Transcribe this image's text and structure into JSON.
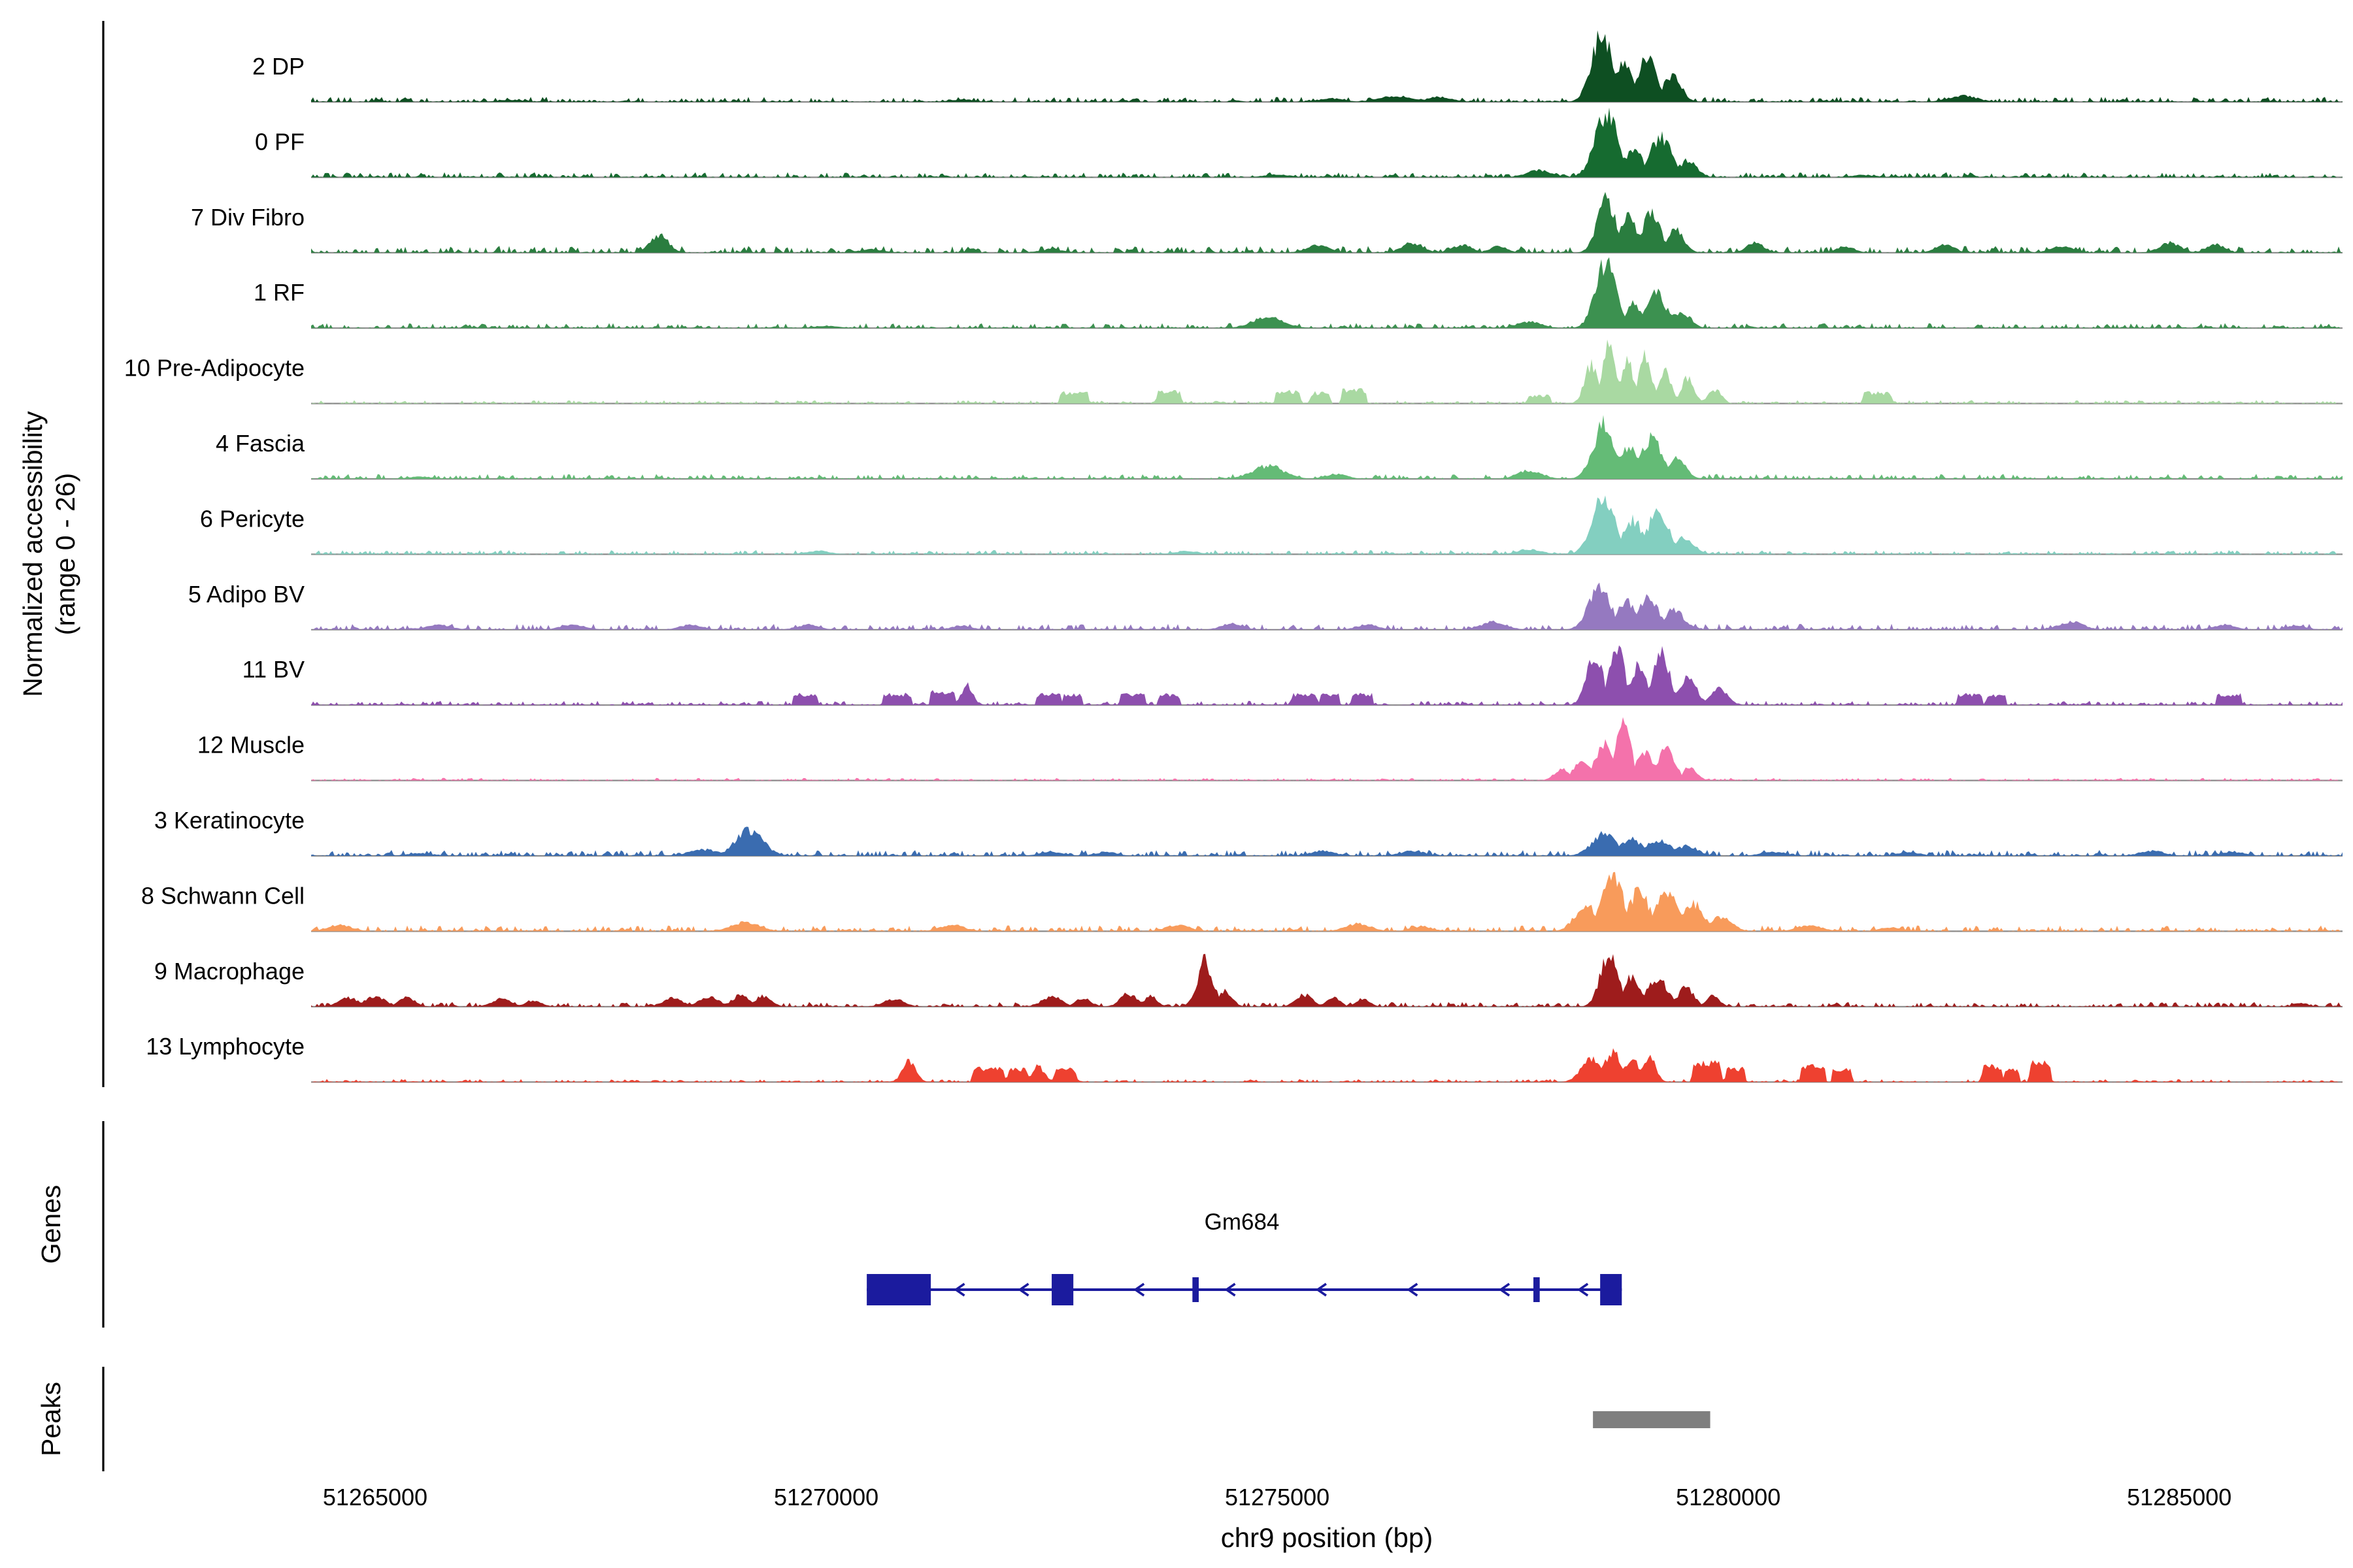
{
  "figure": {
    "y_axis_label_line1": "Normalized accessibility",
    "y_axis_label_line2": "(range 0 - 26)",
    "genes_label": "Genes",
    "peaks_label": "Peaks"
  },
  "chart_data": {
    "type": "area",
    "title": "",
    "xlabel": "chr9 position (bp)",
    "ylabel": "Normalized accessibility (range 0 - 26)",
    "x_domain": [
      51264290,
      51286810
    ],
    "x_ticks": [
      51265000,
      51270000,
      51275000,
      51280000,
      51285000
    ],
    "y_range_per_track": [
      0,
      26
    ],
    "baseline_color": "#8a8a8a",
    "peak_encoding": "peaks entries are [bp_center, height_in_accessibility_units_0to26, width_bp, optional 'b' for block/flat-top shape]",
    "tracks": [
      {
        "label": "2 DP",
        "color": "#0e4f22",
        "noise": 0.6,
        "peaks": [
          [
            51278600,
            24,
            250
          ],
          [
            51278850,
            14,
            220
          ],
          [
            51279100,
            15,
            250
          ],
          [
            51279380,
            9,
            220
          ],
          [
            51276300,
            2.2,
            400
          ],
          [
            51276800,
            1.8,
            300
          ],
          [
            51275600,
            1.2,
            300
          ],
          [
            51282600,
            2.2,
            350
          ],
          [
            51266500,
            0.8,
            300
          ],
          [
            51271500,
            0.8,
            300
          ]
        ]
      },
      {
        "label": "0 PF",
        "color": "#166b30",
        "noise": 0.6,
        "peaks": [
          [
            51278650,
            22.5,
            280
          ],
          [
            51278950,
            10,
            220
          ],
          [
            51279250,
            14,
            260
          ],
          [
            51279550,
            6,
            220
          ],
          [
            51277900,
            2.5,
            300
          ],
          [
            51275000,
            1,
            300
          ],
          [
            51281500,
            0.8,
            300
          ]
        ]
      },
      {
        "label": "7 Div Fibro",
        "color": "#2a7d3f",
        "noise": 0.8,
        "peaks": [
          [
            51278650,
            19,
            220
          ],
          [
            51278900,
            13,
            200
          ],
          [
            51279150,
            14,
            220
          ],
          [
            51279420,
            8,
            200
          ],
          [
            51268150,
            6.5,
            220
          ],
          [
            51275450,
            2.8,
            280
          ],
          [
            51276500,
            3.5,
            260
          ],
          [
            51277050,
            2.8,
            240
          ],
          [
            51277450,
            2.2,
            220
          ],
          [
            51280300,
            3.5,
            220
          ],
          [
            51281300,
            2.2,
            220
          ],
          [
            51282400,
            2.8,
            240
          ],
          [
            51283700,
            2.2,
            280
          ],
          [
            51284900,
            3.5,
            260
          ],
          [
            51285400,
            3,
            220
          ],
          [
            51270500,
            1.2,
            300
          ],
          [
            51272500,
            1.2,
            300
          ]
        ]
      },
      {
        "label": "1 RF",
        "color": "#3c9150",
        "noise": 0.6,
        "peaks": [
          [
            51278650,
            23,
            260
          ],
          [
            51278950,
            9,
            200
          ],
          [
            51279200,
            12,
            260
          ],
          [
            51279480,
            6,
            220
          ],
          [
            51274900,
            4,
            380
          ],
          [
            51277800,
            2.2,
            300
          ],
          [
            51270000,
            0.8,
            300
          ]
        ]
      },
      {
        "label": "10 Pre-Adipocyte",
        "color": "#a9d9a2",
        "noise": 0.4,
        "peaks": [
          [
            51278480,
            14,
            160
          ],
          [
            51278680,
            21,
            160
          ],
          [
            51278880,
            15,
            160
          ],
          [
            51279080,
            17,
            160
          ],
          [
            51279300,
            11,
            160
          ],
          [
            51279550,
            9,
            160
          ],
          [
            51279850,
            5,
            160
          ],
          [
            51272750,
            3.7,
            300,
            "b"
          ],
          [
            51273800,
            4.2,
            250,
            "b"
          ],
          [
            51275120,
            4.2,
            260,
            "b"
          ],
          [
            51275480,
            3.7,
            200,
            "b"
          ],
          [
            51275850,
            4.6,
            260,
            "b"
          ],
          [
            51277900,
            2.8,
            240,
            "b"
          ],
          [
            51281650,
            3.7,
            300,
            "b"
          ]
        ]
      },
      {
        "label": "4 Fascia",
        "color": "#64bb76",
        "noise": 0.6,
        "peaks": [
          [
            51278620,
            19,
            260
          ],
          [
            51278900,
            12,
            220
          ],
          [
            51279150,
            14,
            260
          ],
          [
            51279430,
            7,
            220
          ],
          [
            51274900,
            4.6,
            380
          ],
          [
            51277800,
            3,
            300
          ],
          [
            51275650,
            1.8,
            260
          ],
          [
            51265500,
            0.8,
            300
          ]
        ]
      },
      {
        "label": "6 Pericyte",
        "color": "#83cfc0",
        "noise": 0.5,
        "peaks": [
          [
            51278620,
            20,
            280
          ],
          [
            51278950,
            12,
            240
          ],
          [
            51279220,
            15,
            260
          ],
          [
            51279520,
            6,
            220
          ],
          [
            51269900,
            1.2,
            300
          ],
          [
            51274000,
            1.2,
            300
          ],
          [
            51277800,
            1.8,
            300
          ]
        ]
      },
      {
        "label": "5 Adipo BV",
        "color": "#9579c0",
        "noise": 0.7,
        "peaks": [
          [
            51278570,
            16,
            260
          ],
          [
            51278870,
            10,
            220
          ],
          [
            51279120,
            12,
            220
          ],
          [
            51279400,
            7,
            240
          ],
          [
            51265700,
            1.8,
            300
          ],
          [
            51267200,
            1.8,
            300
          ],
          [
            51268500,
            1.8,
            260
          ],
          [
            51269800,
            1.8,
            260
          ],
          [
            51271500,
            1.4,
            260
          ],
          [
            51274500,
            2.2,
            260
          ],
          [
            51276000,
            1.8,
            260
          ],
          [
            51277400,
            2.8,
            300
          ],
          [
            51283800,
            2.8,
            300
          ],
          [
            51285500,
            1.8,
            260
          ],
          [
            51286300,
            1.4,
            240
          ]
        ]
      },
      {
        "label": "11 BV",
        "color": "#8d4fae",
        "noise": 0.5,
        "peaks": [
          [
            51278520,
            17,
            200
          ],
          [
            51278760,
            21,
            190
          ],
          [
            51279000,
            14,
            190
          ],
          [
            51279260,
            18,
            200
          ],
          [
            51279560,
            10,
            200
          ],
          [
            51279900,
            6,
            200
          ],
          [
            51269770,
            3.7,
            260,
            "b"
          ],
          [
            51270790,
            3.7,
            300,
            "b"
          ],
          [
            51271290,
            4.6,
            260,
            "b"
          ],
          [
            51271560,
            7,
            140
          ],
          [
            51272470,
            3.7,
            260,
            "b"
          ],
          [
            51272730,
            3.7,
            200,
            "b"
          ],
          [
            51273400,
            3.7,
            260,
            "b"
          ],
          [
            51273800,
            3.7,
            220,
            "b"
          ],
          [
            51275300,
            3.7,
            260,
            "b"
          ],
          [
            51275580,
            3.7,
            200,
            "b"
          ],
          [
            51275940,
            3.7,
            220,
            "b"
          ],
          [
            51282680,
            3.7,
            260,
            "b"
          ],
          [
            51282970,
            3.2,
            200,
            "b"
          ],
          [
            51285550,
            3.7,
            260,
            "b"
          ]
        ]
      },
      {
        "label": "12 Muscle",
        "color": "#f472ab",
        "noise": 0.3,
        "peaks": [
          [
            51278150,
            4,
            180
          ],
          [
            51278380,
            7,
            200
          ],
          [
            51278620,
            13,
            200
          ],
          [
            51278830,
            22,
            180
          ],
          [
            51279070,
            10,
            200
          ],
          [
            51279320,
            12,
            200
          ],
          [
            51279580,
            5,
            160
          ]
        ]
      },
      {
        "label": "3 Keratinocyte",
        "color": "#3a6cb0",
        "noise": 0.7,
        "peaks": [
          [
            51269150,
            9,
            330
          ],
          [
            51268650,
            2.2,
            380
          ],
          [
            51278620,
            7.5,
            300
          ],
          [
            51278920,
            6,
            260
          ],
          [
            51279220,
            5.5,
            300
          ],
          [
            51279540,
            3.7,
            260
          ],
          [
            51272500,
            1.4,
            300
          ],
          [
            51273100,
            1.4,
            260
          ],
          [
            51275500,
            1.8,
            300
          ],
          [
            51276500,
            1.8,
            300
          ],
          [
            51280500,
            1.4,
            300
          ],
          [
            51282000,
            1.4,
            260
          ],
          [
            51284700,
            1.8,
            300
          ],
          [
            51285600,
            1.4,
            260
          ],
          [
            51265500,
            1,
            300
          ]
        ]
      },
      {
        "label": "8 Schwann Cell",
        "color": "#f89b5b",
        "noise": 0.7,
        "peaks": [
          [
            51278430,
            9,
            280
          ],
          [
            51278720,
            19,
            260
          ],
          [
            51279010,
            14,
            250
          ],
          [
            51279310,
            15,
            260
          ],
          [
            51279610,
            10,
            260
          ],
          [
            51279920,
            5,
            260
          ],
          [
            51264600,
            2.2,
            300
          ],
          [
            51269100,
            3.2,
            340
          ],
          [
            51271400,
            2.2,
            300
          ],
          [
            51273900,
            2.2,
            300
          ],
          [
            51275900,
            2.8,
            300
          ],
          [
            51276600,
            1.8,
            260
          ],
          [
            51280900,
            2.2,
            300
          ],
          [
            51281800,
            1.4,
            260
          ]
        ]
      },
      {
        "label": "9 Macrophage",
        "color": "#9e1c1c",
        "noise": 0.55,
        "peaks": [
          [
            51264700,
            3.2,
            240
          ],
          [
            51265000,
            3.7,
            240
          ],
          [
            51265350,
            3.2,
            200
          ],
          [
            51266400,
            2.8,
            240
          ],
          [
            51266750,
            2.2,
            200
          ],
          [
            51268300,
            3.2,
            240
          ],
          [
            51268700,
            3.7,
            240
          ],
          [
            51269050,
            4.2,
            200
          ],
          [
            51269300,
            3.7,
            200
          ],
          [
            51270750,
            2.8,
            240
          ],
          [
            51272500,
            3.7,
            240
          ],
          [
            51272850,
            2.8,
            200
          ],
          [
            51273350,
            4.6,
            200
          ],
          [
            51273600,
            3.7,
            160
          ],
          [
            51274200,
            16,
            190
          ],
          [
            51274430,
            5.5,
            160
          ],
          [
            51275300,
            4.2,
            200
          ],
          [
            51275620,
            3.7,
            160
          ],
          [
            51275950,
            2.8,
            160
          ],
          [
            51278680,
            19,
            210
          ],
          [
            51278930,
            11,
            200
          ],
          [
            51279220,
            10,
            250
          ],
          [
            51279530,
            6.5,
            200
          ],
          [
            51279830,
            3.7,
            160
          ],
          [
            51286350,
            1.4,
            160
          ]
        ]
      },
      {
        "label": "13 Lymphocyte",
        "color": "#ee4130",
        "noise": 0.35,
        "peaks": [
          [
            51270920,
            7.5,
            160
          ],
          [
            51271800,
            4.6,
            340,
            "b"
          ],
          [
            51272120,
            4.6,
            200,
            "b"
          ],
          [
            51272350,
            5.5,
            150
          ],
          [
            51272650,
            4.6,
            220,
            "b"
          ],
          [
            51278480,
            8.5,
            240
          ],
          [
            51278720,
            11,
            200
          ],
          [
            51278940,
            7.5,
            200
          ],
          [
            51279120,
            9,
            160
          ],
          [
            51279760,
            6.5,
            300,
            "b"
          ],
          [
            51280080,
            4.6,
            200,
            "b"
          ],
          [
            51280940,
            5.5,
            260,
            "b"
          ],
          [
            51281260,
            4.6,
            200,
            "b"
          ],
          [
            51282920,
            5.5,
            200,
            "b"
          ],
          [
            51283140,
            4.6,
            150,
            "b"
          ],
          [
            51283460,
            6.5,
            220,
            "b"
          ]
        ]
      }
    ],
    "gene": {
      "name": "Gm684",
      "strand": "-",
      "color": "#1b1b9e",
      "start": 51270450,
      "end": 51278820,
      "exons": [
        [
          51270450,
          51271160
        ],
        [
          51272500,
          51272740
        ],
        [
          51274060,
          51274130
        ],
        [
          51277840,
          51277910
        ],
        [
          51278580,
          51278820
        ]
      ],
      "arrows": [
        51271460,
        51272170,
        51273450,
        51274460,
        51275470,
        51276480,
        51277500,
        51278370
      ]
    },
    "peak_regions": [
      {
        "start": 51278500,
        "end": 51279800,
        "color": "#7f7f7f"
      }
    ]
  }
}
